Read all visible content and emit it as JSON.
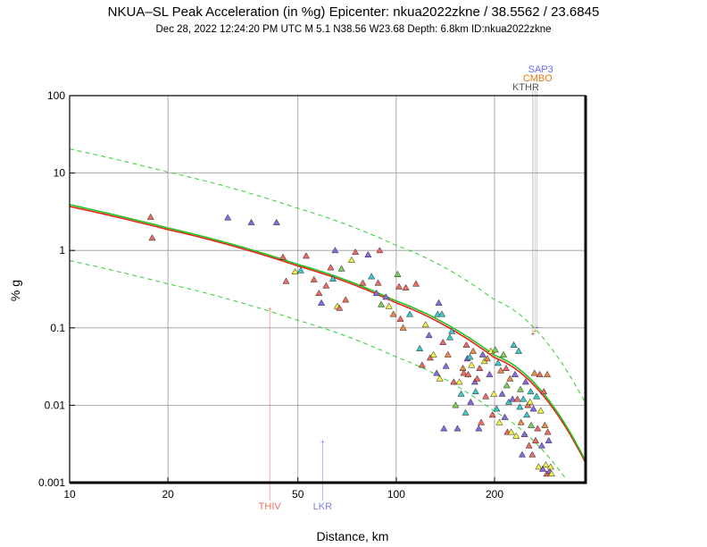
{
  "chart_data": {
    "type": "scatter",
    "title": "NKUA–SL Peak Acceleration (in %g) Epicenter: nkua2022zkne / 38.5562 / 23.6845",
    "subtitle": "Dec 28, 2022 12:24:20 PM UTC   M 5.1   N38.56 W23.68   Depth: 6.8km   ID:nkua2022zkne",
    "xlabel": "Distance, km",
    "ylabel": "% g",
    "x_scale": "log",
    "y_scale": "log",
    "xlim": [
      10,
      380
    ],
    "ylim": [
      0.001,
      100
    ],
    "grid": true,
    "x_ticks": [
      {
        "value": 10,
        "label": "10"
      },
      {
        "value": 20,
        "label": "20"
      },
      {
        "value": 50,
        "label": "50"
      },
      {
        "value": 100,
        "label": "100"
      },
      {
        "value": 200,
        "label": "200"
      }
    ],
    "y_ticks": [
      {
        "value": 0.001,
        "label": "0.001"
      },
      {
        "value": 0.01,
        "label": "0.01"
      },
      {
        "value": 0.1,
        "label": "0.1"
      },
      {
        "value": 1,
        "label": "1"
      },
      {
        "value": 10,
        "label": "10"
      },
      {
        "value": 100,
        "label": "100"
      }
    ],
    "curves": [
      {
        "name": "gmpe-median-red",
        "color": "#e8231e",
        "width": 1.6,
        "dash": false,
        "points": [
          [
            10,
            3.7
          ],
          [
            20,
            1.86
          ],
          [
            50,
            0.63
          ],
          [
            100,
            0.21
          ],
          [
            200,
            0.041
          ],
          [
            300,
            0.0095
          ],
          [
            380,
            0.0018
          ]
        ]
      },
      {
        "name": "gmpe-median-green",
        "color": "#22c31e",
        "width": 1.6,
        "dash": false,
        "points": [
          [
            10,
            3.9
          ],
          [
            20,
            1.95
          ],
          [
            50,
            0.66
          ],
          [
            100,
            0.222
          ],
          [
            200,
            0.044
          ],
          [
            300,
            0.0102
          ],
          [
            380,
            0.0019
          ]
        ]
      },
      {
        "name": "gmpe-plus-sigma",
        "color": "#33cc33",
        "width": 1,
        "dash": true,
        "points": [
          [
            10,
            20.5
          ],
          [
            20,
            10.3
          ],
          [
            50,
            3.5
          ],
          [
            100,
            1.16
          ],
          [
            200,
            0.23
          ],
          [
            300,
            0.053
          ],
          [
            380,
            0.0105
          ]
        ]
      },
      {
        "name": "gmpe-minus-sigma",
        "color": "#33cc33",
        "width": 1,
        "dash": true,
        "points": [
          [
            10,
            0.74
          ],
          [
            20,
            0.37
          ],
          [
            50,
            0.125
          ],
          [
            100,
            0.042
          ],
          [
            200,
            0.0083
          ],
          [
            300,
            0.0019
          ],
          [
            340,
            0.00095
          ]
        ]
      }
    ],
    "stations": [
      {
        "code": "THIV",
        "x": 41,
        "y": 0.175,
        "color": "#e87060"
      },
      {
        "code": "LKR",
        "x": 59.5,
        "y": 0.0033,
        "color": "#8080e0"
      },
      {
        "code": "KTHR",
        "x": 262,
        "y": 0.083,
        "color": "#555555"
      },
      {
        "code": "CMBO",
        "x": 266,
        "y": 0.09,
        "color": "#e07a10"
      },
      {
        "code": "SAP3",
        "x": 270,
        "y": 0.1,
        "color": "#6a6af0"
      }
    ],
    "series_colors": {
      "red": "#ee6b63",
      "yellow": "#f2f24a",
      "cyan": "#3ec9c9",
      "purple": "#8a6ae0",
      "orange": "#ee8a4a",
      "green": "#7ecf5a"
    },
    "points": [
      {
        "x": 17.7,
        "y": 2.7,
        "c": "red"
      },
      {
        "x": 17.9,
        "y": 1.45,
        "c": "red"
      },
      {
        "x": 30.5,
        "y": 2.65,
        "c": "purple"
      },
      {
        "x": 36,
        "y": 2.3,
        "c": "purple"
      },
      {
        "x": 43,
        "y": 2.3,
        "c": "purple"
      },
      {
        "x": 45,
        "y": 0.82,
        "c": "red"
      },
      {
        "x": 46,
        "y": 0.4,
        "c": "red"
      },
      {
        "x": 49,
        "y": 0.53,
        "c": "yellow"
      },
      {
        "x": 51,
        "y": 0.55,
        "c": "cyan"
      },
      {
        "x": 53,
        "y": 0.85,
        "c": "red"
      },
      {
        "x": 56,
        "y": 0.42,
        "c": "red"
      },
      {
        "x": 58,
        "y": 0.28,
        "c": "red"
      },
      {
        "x": 59,
        "y": 0.21,
        "c": "purple"
      },
      {
        "x": 61,
        "y": 0.35,
        "c": "red"
      },
      {
        "x": 63,
        "y": 0.6,
        "c": "red"
      },
      {
        "x": 64,
        "y": 0.43,
        "c": "cyan"
      },
      {
        "x": 65,
        "y": 1.0,
        "c": "purple"
      },
      {
        "x": 66,
        "y": 0.19,
        "c": "yellow"
      },
      {
        "x": 67,
        "y": 0.18,
        "c": "red"
      },
      {
        "x": 68,
        "y": 0.58,
        "c": "green"
      },
      {
        "x": 70,
        "y": 0.23,
        "c": "red"
      },
      {
        "x": 73,
        "y": 0.75,
        "c": "yellow"
      },
      {
        "x": 75,
        "y": 0.95,
        "c": "red"
      },
      {
        "x": 79,
        "y": 0.38,
        "c": "red"
      },
      {
        "x": 82,
        "y": 0.88,
        "c": "purple"
      },
      {
        "x": 84,
        "y": 0.46,
        "c": "cyan"
      },
      {
        "x": 87,
        "y": 0.28,
        "c": "purple"
      },
      {
        "x": 88,
        "y": 0.38,
        "c": "red"
      },
      {
        "x": 89,
        "y": 1.0,
        "c": "red"
      },
      {
        "x": 90,
        "y": 0.2,
        "c": "green"
      },
      {
        "x": 93,
        "y": 0.25,
        "c": "purple"
      },
      {
        "x": 95,
        "y": 0.19,
        "c": "yellow"
      },
      {
        "x": 98,
        "y": 0.15,
        "c": "orange"
      },
      {
        "x": 101,
        "y": 0.49,
        "c": "green"
      },
      {
        "x": 102,
        "y": 0.34,
        "c": "red"
      },
      {
        "x": 103,
        "y": 0.13,
        "c": "red"
      },
      {
        "x": 105,
        "y": 0.1,
        "c": "orange"
      },
      {
        "x": 107,
        "y": 0.33,
        "c": "red"
      },
      {
        "x": 110,
        "y": 0.15,
        "c": "cyan"
      },
      {
        "x": 115,
        "y": 0.37,
        "c": "red"
      },
      {
        "x": 118,
        "y": 0.054,
        "c": "cyan"
      },
      {
        "x": 120,
        "y": 0.033,
        "c": "red"
      },
      {
        "x": 123,
        "y": 0.11,
        "c": "yellow"
      },
      {
        "x": 126,
        "y": 0.08,
        "c": "purple"
      },
      {
        "x": 127,
        "y": 0.041,
        "c": "red"
      },
      {
        "x": 130,
        "y": 0.045,
        "c": "yellow"
      },
      {
        "x": 133,
        "y": 0.026,
        "c": "purple"
      },
      {
        "x": 134,
        "y": 0.15,
        "c": "cyan"
      },
      {
        "x": 135,
        "y": 0.21,
        "c": "purple"
      },
      {
        "x": 136,
        "y": 0.022,
        "c": "yellow"
      },
      {
        "x": 138,
        "y": 0.15,
        "c": "cyan"
      },
      {
        "x": 139,
        "y": 0.065,
        "c": "red"
      },
      {
        "x": 140,
        "y": 0.005,
        "c": "purple"
      },
      {
        "x": 142,
        "y": 0.032,
        "c": "purple"
      },
      {
        "x": 144,
        "y": 0.045,
        "c": "orange"
      },
      {
        "x": 146,
        "y": 0.075,
        "c": "cyan"
      },
      {
        "x": 148,
        "y": 0.09,
        "c": "cyan"
      },
      {
        "x": 150,
        "y": 0.02,
        "c": "red"
      },
      {
        "x": 152,
        "y": 0.01,
        "c": "green"
      },
      {
        "x": 154,
        "y": 0.005,
        "c": "purple"
      },
      {
        "x": 156,
        "y": 0.02,
        "c": "yellow"
      },
      {
        "x": 158,
        "y": 0.014,
        "c": "cyan"
      },
      {
        "x": 160,
        "y": 0.03,
        "c": "orange"
      },
      {
        "x": 161,
        "y": 0.026,
        "c": "red"
      },
      {
        "x": 163,
        "y": 0.008,
        "c": "cyan"
      },
      {
        "x": 164,
        "y": 0.06,
        "c": "red"
      },
      {
        "x": 165,
        "y": 0.04,
        "c": "purple"
      },
      {
        "x": 166,
        "y": 0.025,
        "c": "red"
      },
      {
        "x": 168,
        "y": 0.042,
        "c": "cyan"
      },
      {
        "x": 169,
        "y": 0.011,
        "c": "purple"
      },
      {
        "x": 170,
        "y": 0.033,
        "c": "yellow"
      },
      {
        "x": 172,
        "y": 0.05,
        "c": "orange"
      },
      {
        "x": 174,
        "y": 0.02,
        "c": "purple"
      },
      {
        "x": 175,
        "y": 0.015,
        "c": "cyan"
      },
      {
        "x": 177,
        "y": 0.022,
        "c": "red"
      },
      {
        "x": 179,
        "y": 0.005,
        "c": "purple"
      },
      {
        "x": 180,
        "y": 0.03,
        "c": "red"
      },
      {
        "x": 182,
        "y": 0.006,
        "c": "red"
      },
      {
        "x": 184,
        "y": 0.045,
        "c": "purple"
      },
      {
        "x": 186,
        "y": 0.037,
        "c": "yellow"
      },
      {
        "x": 188,
        "y": 0.013,
        "c": "red"
      },
      {
        "x": 190,
        "y": 0.04,
        "c": "orange"
      },
      {
        "x": 193,
        "y": 0.025,
        "c": "purple"
      },
      {
        "x": 195,
        "y": 0.05,
        "c": "yellow"
      },
      {
        "x": 197,
        "y": 0.0075,
        "c": "red"
      },
      {
        "x": 199,
        "y": 0.014,
        "c": "yellow"
      },
      {
        "x": 201,
        "y": 0.052,
        "c": "green"
      },
      {
        "x": 203,
        "y": 0.009,
        "c": "cyan"
      },
      {
        "x": 205,
        "y": 0.035,
        "c": "cyan"
      },
      {
        "x": 207,
        "y": 0.006,
        "c": "yellow"
      },
      {
        "x": 209,
        "y": 0.028,
        "c": "orange"
      },
      {
        "x": 211,
        "y": 0.014,
        "c": "purple"
      },
      {
        "x": 213,
        "y": 0.045,
        "c": "green"
      },
      {
        "x": 215,
        "y": 0.007,
        "c": "purple"
      },
      {
        "x": 217,
        "y": 0.03,
        "c": "red"
      },
      {
        "x": 219,
        "y": 0.0045,
        "c": "red"
      },
      {
        "x": 221,
        "y": 0.011,
        "c": "cyan"
      },
      {
        "x": 223,
        "y": 0.022,
        "c": "orange"
      },
      {
        "x": 225,
        "y": 0.0045,
        "c": "yellow"
      },
      {
        "x": 227,
        "y": 0.012,
        "c": "purple"
      },
      {
        "x": 229,
        "y": 0.06,
        "c": "cyan"
      },
      {
        "x": 231,
        "y": 0.025,
        "c": "purple"
      },
      {
        "x": 233,
        "y": 0.004,
        "c": "yellow"
      },
      {
        "x": 235,
        "y": 0.012,
        "c": "red"
      },
      {
        "x": 237,
        "y": 0.05,
        "c": "cyan"
      },
      {
        "x": 239,
        "y": 0.0095,
        "c": "cyan"
      },
      {
        "x": 241,
        "y": 0.006,
        "c": "orange"
      },
      {
        "x": 243,
        "y": 0.0023,
        "c": "purple"
      },
      {
        "x": 245,
        "y": 0.012,
        "c": "cyan"
      },
      {
        "x": 247,
        "y": 0.0042,
        "c": "purple"
      },
      {
        "x": 249,
        "y": 0.02,
        "c": "purple"
      },
      {
        "x": 251,
        "y": 0.0075,
        "c": "cyan"
      },
      {
        "x": 253,
        "y": 0.01,
        "c": "red"
      },
      {
        "x": 255,
        "y": 0.003,
        "c": "red"
      },
      {
        "x": 257,
        "y": 0.011,
        "c": "yellow"
      },
      {
        "x": 259,
        "y": 0.0055,
        "c": "green"
      },
      {
        "x": 261,
        "y": 0.0023,
        "c": "red"
      },
      {
        "x": 263,
        "y": 0.009,
        "c": "purple"
      },
      {
        "x": 265,
        "y": 0.026,
        "c": "orange"
      },
      {
        "x": 267,
        "y": 0.0035,
        "c": "red"
      },
      {
        "x": 269,
        "y": 0.013,
        "c": "cyan"
      },
      {
        "x": 271,
        "y": 0.005,
        "c": "red"
      },
      {
        "x": 273,
        "y": 0.0016,
        "c": "yellow"
      },
      {
        "x": 275,
        "y": 0.025,
        "c": "red"
      },
      {
        "x": 277,
        "y": 0.0085,
        "c": "yellow"
      },
      {
        "x": 279,
        "y": 0.003,
        "c": "purple"
      },
      {
        "x": 281,
        "y": 0.0015,
        "c": "purple"
      },
      {
        "x": 283,
        "y": 0.015,
        "c": "red"
      },
      {
        "x": 285,
        "y": 0.0055,
        "c": "orange"
      },
      {
        "x": 287,
        "y": 0.0017,
        "c": "yellow"
      },
      {
        "x": 289,
        "y": 0.0013,
        "c": "red"
      },
      {
        "x": 291,
        "y": 0.0045,
        "c": "red"
      },
      {
        "x": 293,
        "y": 0.0035,
        "c": "purple"
      },
      {
        "x": 295,
        "y": 0.0014,
        "c": "purple"
      },
      {
        "x": 297,
        "y": 0.0016,
        "c": "yellow"
      },
      {
        "x": 299,
        "y": 0.0013,
        "c": "yellow"
      },
      {
        "x": 290,
        "y": 0.025,
        "c": "orange"
      },
      {
        "x": 258,
        "y": 0.015,
        "c": "cyan"
      },
      {
        "x": 240,
        "y": 0.016,
        "c": "green"
      },
      {
        "x": 218,
        "y": 0.018,
        "c": "green"
      }
    ]
  }
}
